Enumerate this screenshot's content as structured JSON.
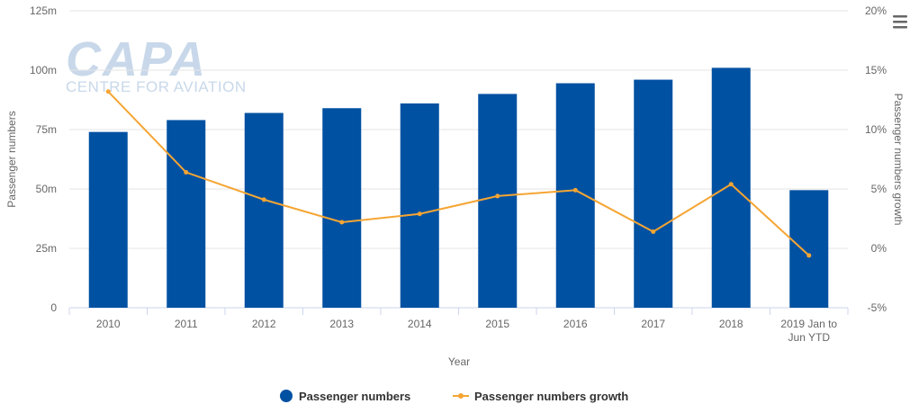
{
  "chart_data": {
    "type": "bar",
    "categories": [
      "2010",
      "2011",
      "2012",
      "2013",
      "2014",
      "2015",
      "2016",
      "2017",
      "2018",
      "2019 Jan to Jun YTD"
    ],
    "category_lines": [
      [
        "2010"
      ],
      [
        "2011"
      ],
      [
        "2012"
      ],
      [
        "2013"
      ],
      [
        "2014"
      ],
      [
        "2015"
      ],
      [
        "2016"
      ],
      [
        "2017"
      ],
      [
        "2018"
      ],
      [
        "2019 Jan to",
        "Jun YTD"
      ]
    ],
    "series": [
      {
        "name": "Passenger numbers",
        "type": "bar",
        "axis": "left",
        "color": "#0051a2",
        "values": [
          74.0,
          79.0,
          82.0,
          84.0,
          86.0,
          90.0,
          94.5,
          96.0,
          101.0,
          49.5
        ]
      },
      {
        "name": "Passenger numbers growth",
        "type": "line",
        "axis": "right",
        "color": "#f5a533",
        "values": [
          13.2,
          6.4,
          4.1,
          2.2,
          2.9,
          4.4,
          4.9,
          1.4,
          5.4,
          -0.6
        ]
      }
    ],
    "xlabel": "Year",
    "ylabel": "Passenger numbers",
    "y2label": "Passenger numbers growth",
    "ylim": [
      0,
      125
    ],
    "y2lim": [
      -5,
      20
    ],
    "yticks": [
      0,
      25,
      50,
      75,
      100,
      125
    ],
    "ytick_labels": [
      "0",
      "25m",
      "50m",
      "75m",
      "100m",
      "125m"
    ],
    "y2ticks": [
      -5,
      0,
      5,
      10,
      15,
      20
    ],
    "y2tick_labels": [
      "-5%",
      "0%",
      "5%",
      "10%",
      "15%",
      "20%"
    ],
    "grid": true,
    "legend_position": "bottom-center"
  },
  "watermark": {
    "big": "CAPA",
    "small": "CENTRE FOR AVIATION"
  },
  "colors": {
    "grid": "#e6e6e6",
    "axis": "#ccd6eb",
    "menu": "#666666"
  },
  "menu_icon": "hamburger-menu-icon"
}
